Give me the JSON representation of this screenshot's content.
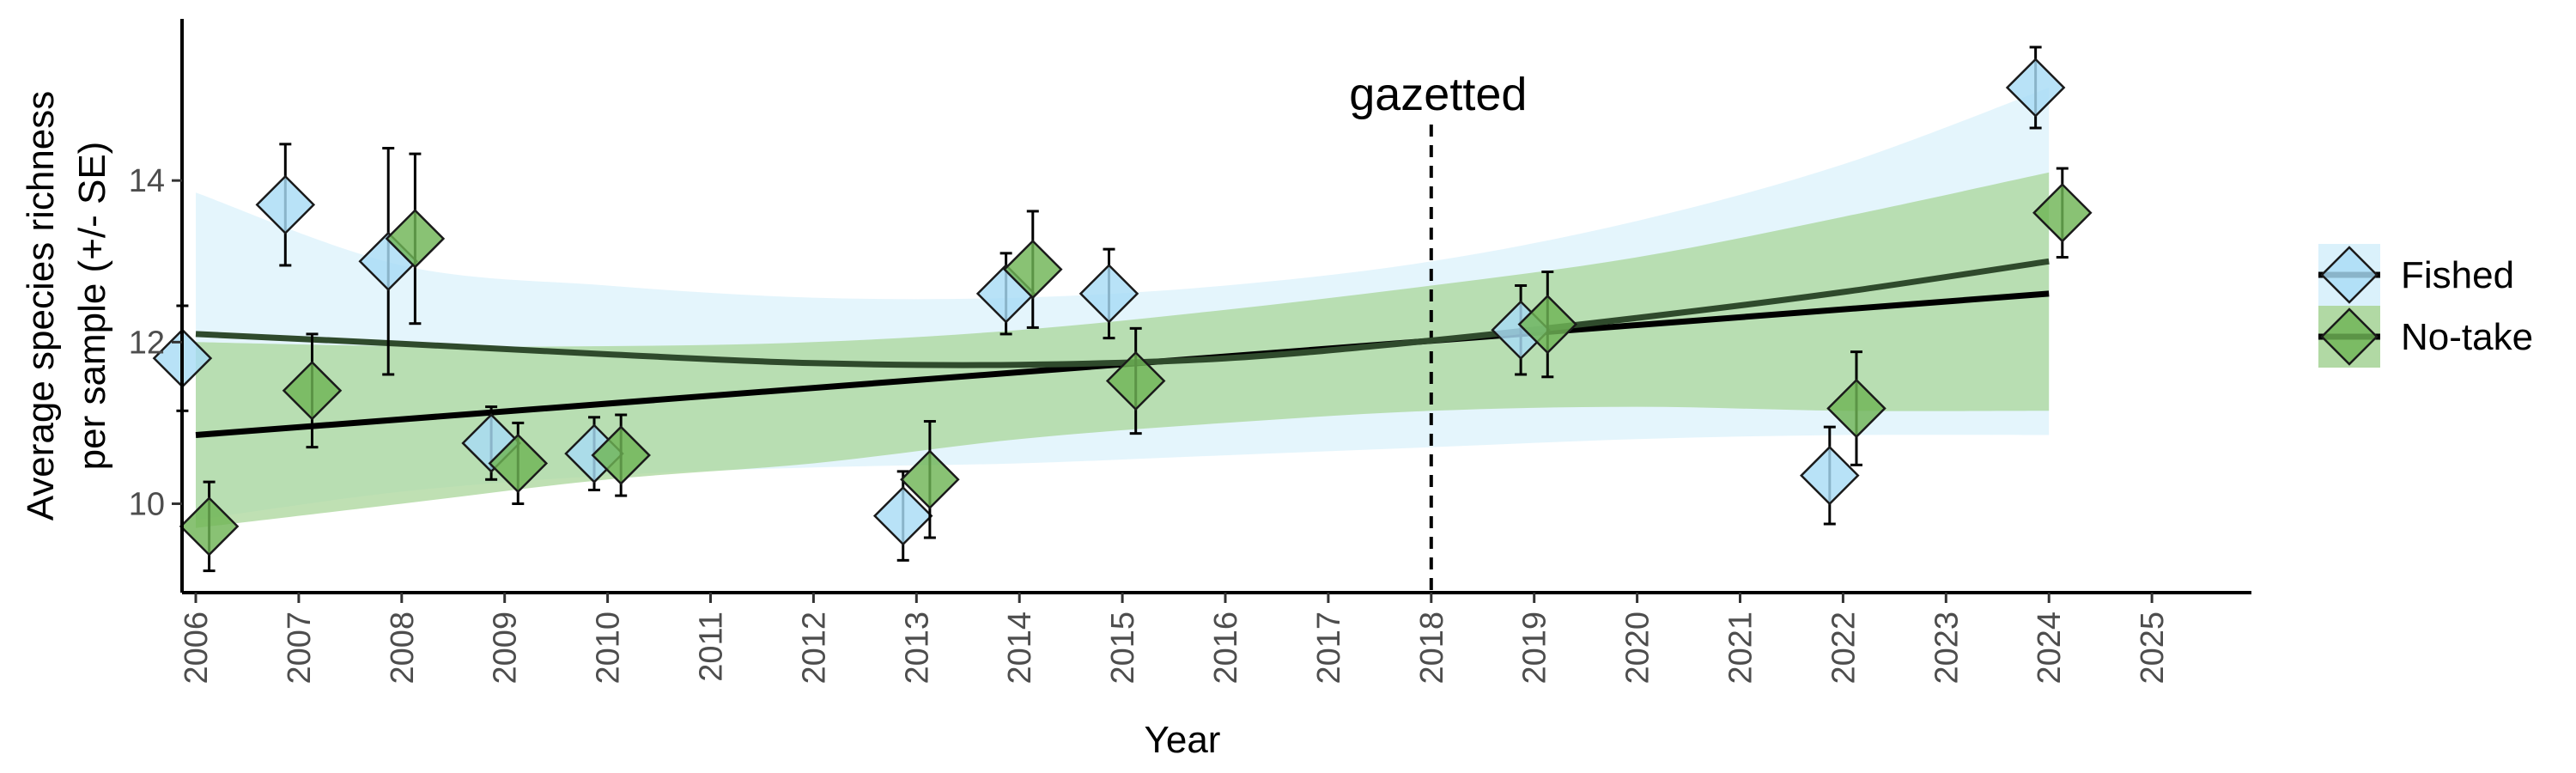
{
  "chart_data": {
    "type": "scatter",
    "xlabel": "Year",
    "ylabel_line1": "Average species richness",
    "ylabel_line2": "per sample (+/- SE)",
    "xlim": [
      2006,
      2025
    ],
    "ylim": [
      8.9,
      16.0
    ],
    "x_ticks": [
      2006,
      2007,
      2008,
      2009,
      2010,
      2011,
      2012,
      2013,
      2014,
      2015,
      2016,
      2017,
      2018,
      2019,
      2020,
      2021,
      2022,
      2023,
      2024,
      2025
    ],
    "y_ticks": [
      10,
      12,
      14
    ],
    "grid": false,
    "legend_position": "right",
    "annotation": {
      "text": "gazetted",
      "x": 2018
    },
    "series": [
      {
        "name": "Fished",
        "color": "#a8dcf5",
        "band_color": "#d6effb",
        "points": [
          {
            "x": 2006,
            "y": 11.8,
            "se": 0.65
          },
          {
            "x": 2007,
            "y": 13.7,
            "se": 0.75
          },
          {
            "x": 2008,
            "y": 13.0,
            "se": 1.4
          },
          {
            "x": 2009,
            "y": 10.75,
            "se": 0.45
          },
          {
            "x": 2010,
            "y": 10.62,
            "se": 0.45
          },
          {
            "x": 2013,
            "y": 9.85,
            "se": 0.55
          },
          {
            "x": 2014,
            "y": 12.6,
            "se": 0.5
          },
          {
            "x": 2015,
            "y": 12.6,
            "se": 0.55
          },
          {
            "x": 2019,
            "y": 12.15,
            "se": 0.55
          },
          {
            "x": 2022,
            "y": 10.35,
            "se": 0.6
          },
          {
            "x": 2024,
            "y": 15.15,
            "se": 0.5
          }
        ],
        "trend": {
          "type": "linear",
          "x": [
            2006,
            2024
          ],
          "y": [
            10.85,
            12.6
          ]
        },
        "band": {
          "x": [
            2006,
            2008,
            2010,
            2012,
            2014,
            2016,
            2018,
            2020,
            2022,
            2024
          ],
          "lower": [
            9.8,
            10.15,
            10.35,
            10.45,
            10.5,
            10.6,
            10.7,
            10.8,
            10.85,
            10.85
          ],
          "upper": [
            13.85,
            12.95,
            12.7,
            12.55,
            12.55,
            12.7,
            13.0,
            13.5,
            14.2,
            15.15
          ]
        }
      },
      {
        "name": "No-take",
        "color": "#6fb556",
        "band_color": "#a9d59a",
        "points": [
          {
            "x": 2006,
            "y": 9.72,
            "se": 0.55
          },
          {
            "x": 2007,
            "y": 11.4,
            "se": 0.7
          },
          {
            "x": 2008,
            "y": 13.28,
            "se": 1.05
          },
          {
            "x": 2009,
            "y": 10.5,
            "se": 0.5
          },
          {
            "x": 2010,
            "y": 10.6,
            "se": 0.5
          },
          {
            "x": 2013,
            "y": 10.3,
            "se": 0.72
          },
          {
            "x": 2014,
            "y": 12.9,
            "se": 0.72
          },
          {
            "x": 2015,
            "y": 11.52,
            "se": 0.65
          },
          {
            "x": 2019,
            "y": 12.22,
            "se": 0.65
          },
          {
            "x": 2022,
            "y": 11.18,
            "se": 0.7
          },
          {
            "x": 2024,
            "y": 13.6,
            "se": 0.55
          }
        ],
        "trend": {
          "type": "curve",
          "x": [
            2006,
            2008,
            2010,
            2012,
            2014,
            2016,
            2018,
            2020,
            2022,
            2024
          ],
          "y": [
            12.1,
            11.98,
            11.85,
            11.74,
            11.72,
            11.8,
            12.02,
            12.3,
            12.62,
            13.0
          ]
        },
        "band": {
          "x": [
            2006,
            2008,
            2010,
            2012,
            2014,
            2016,
            2018,
            2020,
            2022,
            2024
          ],
          "lower": [
            9.7,
            10.0,
            10.3,
            10.5,
            10.8,
            11.0,
            11.15,
            11.2,
            11.15,
            11.15
          ],
          "upper": [
            12.0,
            11.95,
            11.95,
            12.0,
            12.15,
            12.4,
            12.7,
            13.05,
            13.55,
            14.1
          ]
        }
      }
    ]
  }
}
